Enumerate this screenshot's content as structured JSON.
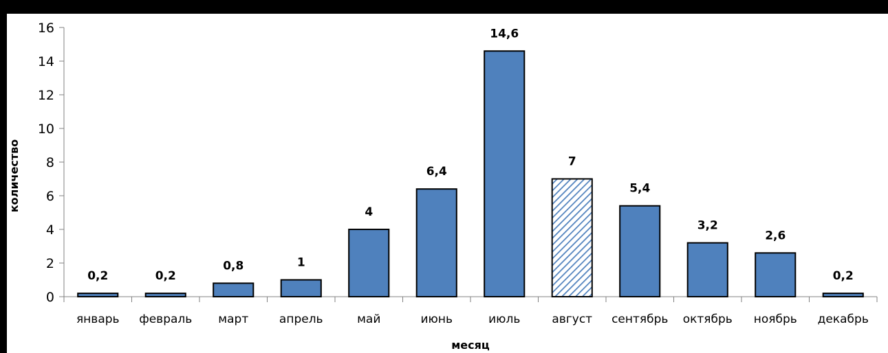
{
  "chart_data": {
    "type": "bar",
    "title": "",
    "xlabel": "месяц",
    "ylabel": "количество",
    "ylim": [
      0,
      16
    ],
    "yticks": [
      0,
      2,
      4,
      6,
      8,
      10,
      12,
      14,
      16
    ],
    "categories": [
      "январь",
      "февраль",
      "март",
      "апрель",
      "май",
      "июнь",
      "июль",
      "август",
      "сентябрь",
      "октябрь",
      "ноябрь",
      "декабрь"
    ],
    "values": [
      0.2,
      0.2,
      0.8,
      1,
      4,
      6.4,
      14.6,
      7,
      5.4,
      3.2,
      2.6,
      0.2
    ],
    "data_labels": [
      "0,2",
      "0,2",
      "0,8",
      "1",
      "4",
      "6,4",
      "14,6",
      "7",
      "5,4",
      "3,2",
      "2,6",
      "0,2"
    ],
    "hatched_categories": [
      "август"
    ],
    "grid": false,
    "bar_color": "#4F81BD",
    "hatch_color": "#4F81BD"
  }
}
